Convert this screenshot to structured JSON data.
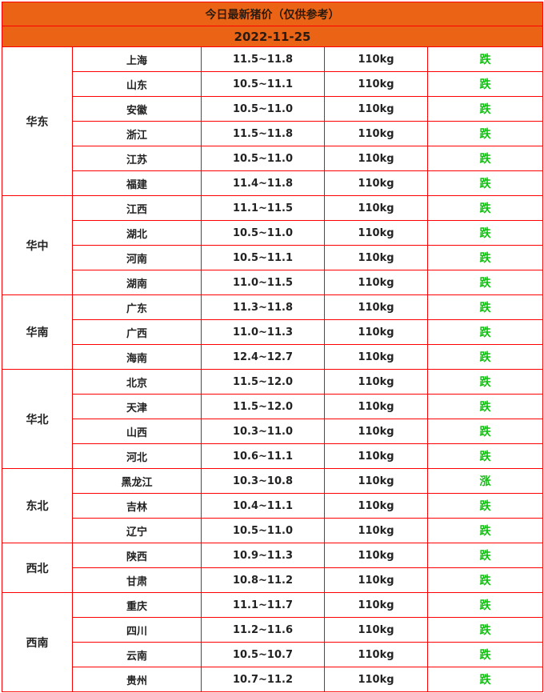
{
  "title": "今日最新猪价（仅供参考）",
  "date": "2022-11-25",
  "colors": {
    "header_bg": "#eb6415",
    "border": "#ff0000",
    "trend": "#10c010"
  },
  "regions": [
    {
      "name": "华东",
      "rows": [
        {
          "province": "上海",
          "price": "11.5~11.8",
          "weight": "110kg",
          "trend": "跌"
        },
        {
          "province": "山东",
          "price": "10.5~11.1",
          "weight": "110kg",
          "trend": "跌"
        },
        {
          "province": "安徽",
          "price": "10.5~11.0",
          "weight": "110kg",
          "trend": "跌"
        },
        {
          "province": "浙江",
          "price": "11.5~11.8",
          "weight": "110kg",
          "trend": "跌"
        },
        {
          "province": "江苏",
          "price": "10.5~11.0",
          "weight": "110kg",
          "trend": "跌"
        },
        {
          "province": "福建",
          "price": "11.4~11.8",
          "weight": "110kg",
          "trend": "跌"
        }
      ]
    },
    {
      "name": "华中",
      "rows": [
        {
          "province": "江西",
          "price": "11.1~11.5",
          "weight": "110kg",
          "trend": "跌"
        },
        {
          "province": "湖北",
          "price": "10.5~11.0",
          "weight": "110kg",
          "trend": "跌"
        },
        {
          "province": "河南",
          "price": "10.5~11.1",
          "weight": "110kg",
          "trend": "跌"
        },
        {
          "province": "湖南",
          "price": "11.0~11.5",
          "weight": "110kg",
          "trend": "跌"
        }
      ]
    },
    {
      "name": "华南",
      "rows": [
        {
          "province": "广东",
          "price": "11.3~11.8",
          "weight": "110kg",
          "trend": "跌"
        },
        {
          "province": "广西",
          "price": "11.0~11.3",
          "weight": "110kg",
          "trend": "跌"
        },
        {
          "province": "海南",
          "price": "12.4~12.7",
          "weight": "110kg",
          "trend": "跌"
        }
      ]
    },
    {
      "name": "华北",
      "rows": [
        {
          "province": "北京",
          "price": "11.5~12.0",
          "weight": "110kg",
          "trend": "跌"
        },
        {
          "province": "天津",
          "price": "11.5~12.0",
          "weight": "110kg",
          "trend": "跌"
        },
        {
          "province": "山西",
          "price": "10.3~11.0",
          "weight": "110kg",
          "trend": "跌"
        },
        {
          "province": "河北",
          "price": "10.6~11.1",
          "weight": "110kg",
          "trend": "跌"
        }
      ]
    },
    {
      "name": "东北",
      "rows": [
        {
          "province": "黑龙江",
          "price": "10.3~10.8",
          "weight": "110kg",
          "trend": "涨"
        },
        {
          "province": "吉林",
          "price": "10.4~11.1",
          "weight": "110kg",
          "trend": "跌"
        },
        {
          "province": "辽宁",
          "price": "10.5~11.0",
          "weight": "110kg",
          "trend": "跌"
        }
      ]
    },
    {
      "name": "西北",
      "rows": [
        {
          "province": "陕西",
          "price": "10.9~11.3",
          "weight": "110kg",
          "trend": "跌"
        },
        {
          "province": "甘肃",
          "price": "10.8~11.2",
          "weight": "110kg",
          "trend": "跌"
        }
      ]
    },
    {
      "name": "西南",
      "rows": [
        {
          "province": "重庆",
          "price": "11.1~11.7",
          "weight": "110kg",
          "trend": "跌"
        },
        {
          "province": "四川",
          "price": "11.2~11.6",
          "weight": "110kg",
          "trend": "跌"
        },
        {
          "province": "云南",
          "price": "10.5~10.7",
          "weight": "110kg",
          "trend": "跌"
        },
        {
          "province": "贵州",
          "price": "10.7~11.2",
          "weight": "110kg",
          "trend": "跌"
        }
      ]
    }
  ]
}
